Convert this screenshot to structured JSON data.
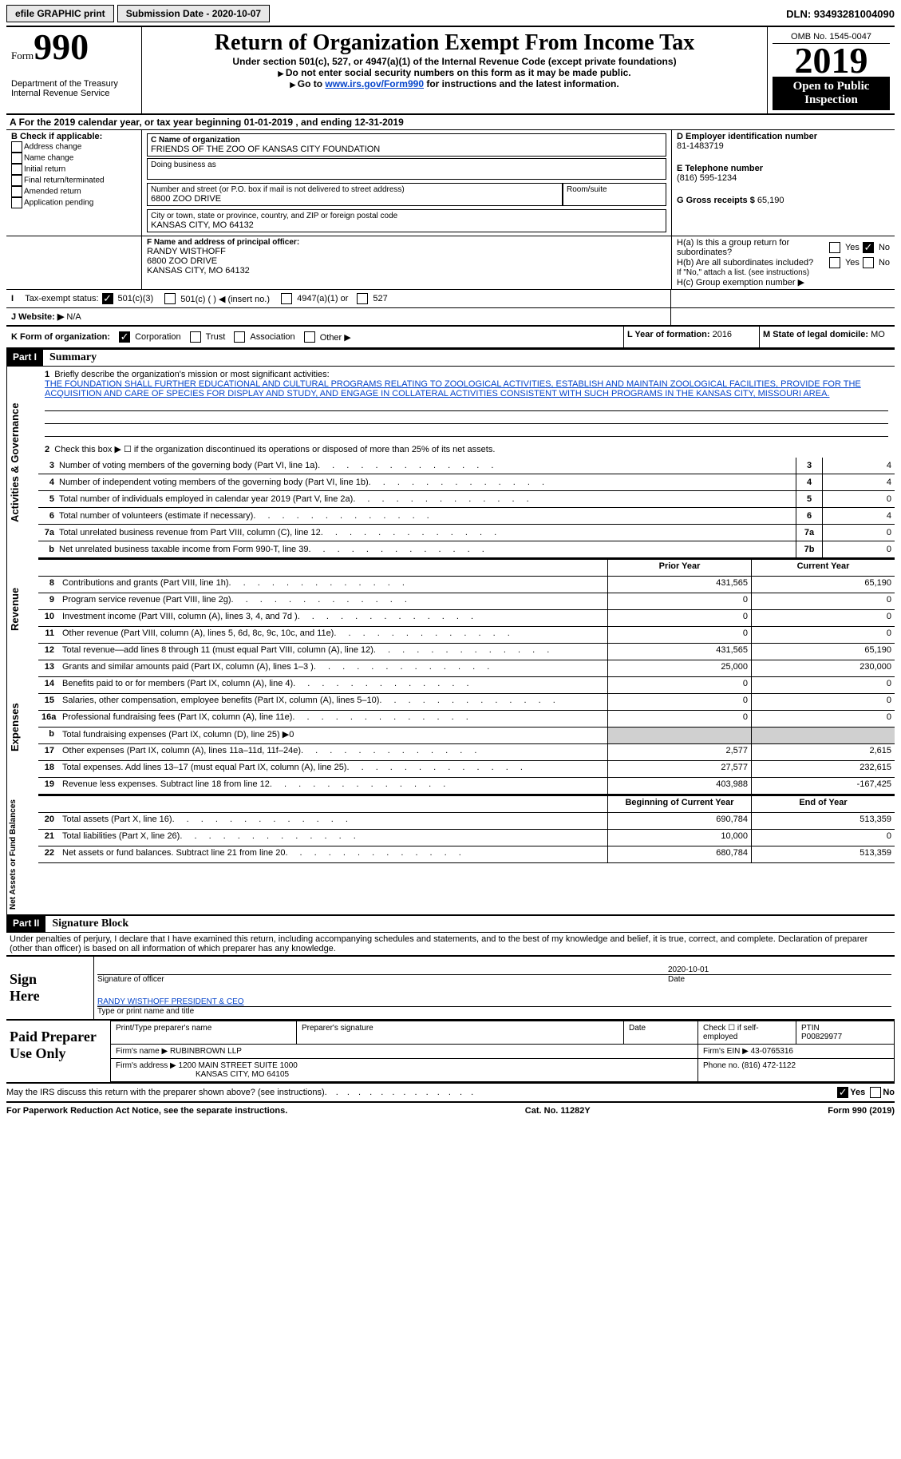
{
  "topbar": {
    "efile": "efile GRAPHIC print",
    "sub": "Submission Date - 2020-10-07",
    "dln": "DLN: 93493281004090"
  },
  "header": {
    "form_word": "Form",
    "form_num": "990",
    "dept": "Department of the Treasury",
    "irs": "Internal Revenue Service",
    "title": "Return of Organization Exempt From Income Tax",
    "sub1": "Under section 501(c), 527, or 4947(a)(1) of the Internal Revenue Code (except private foundations)",
    "sub2": "Do not enter social security numbers on this form as it may be made public.",
    "sub3_pre": "Go to ",
    "sub3_link": "www.irs.gov/Form990",
    "sub3_post": " for instructions and the latest information.",
    "omb": "OMB No. 1545-0047",
    "year": "2019",
    "open": "Open to Public Inspection"
  },
  "rowA": "For the 2019 calendar year, or tax year beginning 01-01-2019   , and ending 12-31-2019",
  "boxB": {
    "title": "B Check if applicable:",
    "items": [
      "Address change",
      "Name change",
      "Initial return",
      "Final return/terminated",
      "Amended return",
      "Application pending"
    ]
  },
  "boxC": {
    "label": "C Name of organization",
    "name": "FRIENDS OF THE ZOO OF KANSAS CITY FOUNDATION",
    "dba": "Doing business as",
    "street_lbl": "Number and street (or P.O. box if mail is not delivered to street address)",
    "room": "Room/suite",
    "street": "6800 ZOO DRIVE",
    "city_lbl": "City or town, state or province, country, and ZIP or foreign postal code",
    "city": "KANSAS CITY, MO  64132"
  },
  "boxD": {
    "label": "D Employer identification number",
    "val": "81-1483719"
  },
  "boxE": {
    "label": "E Telephone number",
    "val": "(816) 595-1234"
  },
  "boxG": {
    "label": "G Gross receipts $",
    "val": "65,190"
  },
  "boxF": {
    "label": "F  Name and address of principal officer:",
    "l1": "RANDY WISTHOFF",
    "l2": "6800 ZOO DRIVE",
    "l3": "KANSAS CITY, MO  64132"
  },
  "boxH": {
    "a": "H(a)  Is this a group return for subordinates?",
    "b": "H(b)  Are all subordinates included?",
    "bnote": "If \"No,\" attach a list. (see instructions)",
    "c": "H(c)  Group exemption number ▶",
    "yes": "Yes",
    "no": "No"
  },
  "rowI": {
    "label": "Tax-exempt status:",
    "o1": "501(c)(3)",
    "o2": "501(c) (  ) ◀ (insert no.)",
    "o3": "4947(a)(1) or",
    "o4": "527"
  },
  "rowJ": {
    "label": "J   Website: ▶",
    "val": "N/A"
  },
  "rowK": {
    "label": "K Form of organization:",
    "o1": "Corporation",
    "o2": "Trust",
    "o3": "Association",
    "o4": "Other ▶"
  },
  "rowL": {
    "label": "L Year of formation:",
    "val": "2016"
  },
  "rowM": {
    "label": "M State of legal domicile:",
    "val": "MO"
  },
  "part1": {
    "tag": "Part I",
    "title": "Summary"
  },
  "summary": {
    "q1": "Briefly describe the organization's mission or most significant activities:",
    "mission": "THE FOUNDATION SHALL FURTHER EDUCATIONAL AND CULTURAL PROGRAMS RELATING TO ZOOLOGICAL ACTIVITIES, ESTABLISH AND MAINTAIN ZOOLOGICAL FACILITIES, PROVIDE FOR THE ACQUISITION AND CARE OF SPECIES FOR DISPLAY AND STUDY, AND ENGAGE IN COLLATERAL ACTIVITIES CONSISTENT WITH SUCH PROGRAMS IN THE KANSAS CITY, MISSOURI AREA.",
    "q2": "Check this box ▶ ☐  if the organization discontinued its operations or disposed of more than 25% of its net assets.",
    "lines": [
      {
        "n": "3",
        "t": "Number of voting members of the governing body (Part VI, line 1a)",
        "ln": "3",
        "v": "4"
      },
      {
        "n": "4",
        "t": "Number of independent voting members of the governing body (Part VI, line 1b)",
        "ln": "4",
        "v": "4"
      },
      {
        "n": "5",
        "t": "Total number of individuals employed in calendar year 2019 (Part V, line 2a)",
        "ln": "5",
        "v": "0"
      },
      {
        "n": "6",
        "t": "Total number of volunteers (estimate if necessary)",
        "ln": "6",
        "v": "4"
      },
      {
        "n": "7a",
        "t": "Total unrelated business revenue from Part VIII, column (C), line 12",
        "ln": "7a",
        "v": "0"
      },
      {
        "n": "b",
        "t": "Net unrelated business taxable income from Form 990-T, line 39",
        "ln": "7b",
        "v": "0"
      }
    ],
    "th_prior": "Prior Year",
    "th_curr": "Current Year",
    "rev": [
      {
        "n": "8",
        "t": "Contributions and grants (Part VIII, line 1h)",
        "p": "431,565",
        "c": "65,190"
      },
      {
        "n": "9",
        "t": "Program service revenue (Part VIII, line 2g)",
        "p": "0",
        "c": "0"
      },
      {
        "n": "10",
        "t": "Investment income (Part VIII, column (A), lines 3, 4, and 7d )",
        "p": "0",
        "c": "0"
      },
      {
        "n": "11",
        "t": "Other revenue (Part VIII, column (A), lines 5, 6d, 8c, 9c, 10c, and 11e)",
        "p": "0",
        "c": "0"
      },
      {
        "n": "12",
        "t": "Total revenue—add lines 8 through 11 (must equal Part VIII, column (A), line 12)",
        "p": "431,565",
        "c": "65,190"
      }
    ],
    "exp": [
      {
        "n": "13",
        "t": "Grants and similar amounts paid (Part IX, column (A), lines 1–3 )",
        "p": "25,000",
        "c": "230,000"
      },
      {
        "n": "14",
        "t": "Benefits paid to or for members (Part IX, column (A), line 4)",
        "p": "0",
        "c": "0"
      },
      {
        "n": "15",
        "t": "Salaries, other compensation, employee benefits (Part IX, column (A), lines 5–10)",
        "p": "0",
        "c": "0"
      },
      {
        "n": "16a",
        "t": "Professional fundraising fees (Part IX, column (A), line 11e)",
        "p": "0",
        "c": "0"
      },
      {
        "n": "b",
        "t": "Total fundraising expenses (Part IX, column (D), line 25) ▶0",
        "p": "",
        "c": "",
        "shade": true
      },
      {
        "n": "17",
        "t": "Other expenses (Part IX, column (A), lines 11a–11d, 11f–24e)",
        "p": "2,577",
        "c": "2,615"
      },
      {
        "n": "18",
        "t": "Total expenses. Add lines 13–17 (must equal Part IX, column (A), line 25)",
        "p": "27,577",
        "c": "232,615"
      },
      {
        "n": "19",
        "t": "Revenue less expenses. Subtract line 18 from line 12",
        "p": "403,988",
        "c": "-167,425"
      }
    ],
    "th_beg": "Beginning of Current Year",
    "th_end": "End of Year",
    "net": [
      {
        "n": "20",
        "t": "Total assets (Part X, line 16)",
        "p": "690,784",
        "c": "513,359"
      },
      {
        "n": "21",
        "t": "Total liabilities (Part X, line 26)",
        "p": "10,000",
        "c": "0"
      },
      {
        "n": "22",
        "t": "Net assets or fund balances. Subtract line 21 from line 20",
        "p": "680,784",
        "c": "513,359"
      }
    ]
  },
  "vlab": {
    "ag": "Activities & Governance",
    "rev": "Revenue",
    "exp": "Expenses",
    "net": "Net Assets or Fund Balances"
  },
  "part2": {
    "tag": "Part II",
    "title": "Signature Block"
  },
  "perjury": "Under penalties of perjury, I declare that I have examined this return, including accompanying schedules and statements, and to the best of my knowledge and belief, it is true, correct, and complete. Declaration of preparer (other than officer) is based on all information of which preparer has any knowledge.",
  "sign": {
    "here": "Sign Here",
    "sig_lbl": "Signature of officer",
    "date_lbl": "Date",
    "date": "2020-10-01",
    "name": "RANDY WISTHOFF PRESIDENT & CEO",
    "name_lbl": "Type or print name and title"
  },
  "prep": {
    "here": "Paid Preparer Use Only",
    "c1": "Print/Type preparer's name",
    "c2": "Preparer's signature",
    "c3": "Date",
    "c4a": "Check ☐ if self-employed",
    "c4b": "PTIN",
    "ptin": "P00829977",
    "firm_lbl": "Firm's name   ▶",
    "firm": "RUBINBROWN LLP",
    "ein_lbl": "Firm's EIN ▶",
    "ein": "43-0765316",
    "addr_lbl": "Firm's address ▶",
    "addr1": "1200 MAIN STREET SUITE 1000",
    "addr2": "KANSAS CITY, MO  64105",
    "ph_lbl": "Phone no.",
    "ph": "(816) 472-1122"
  },
  "discuss": "May the IRS discuss this return with the preparer shown above? (see instructions)",
  "foot": {
    "l": "For Paperwork Reduction Act Notice, see the separate instructions.",
    "m": "Cat. No. 11282Y",
    "r": "Form 990 (2019)"
  }
}
